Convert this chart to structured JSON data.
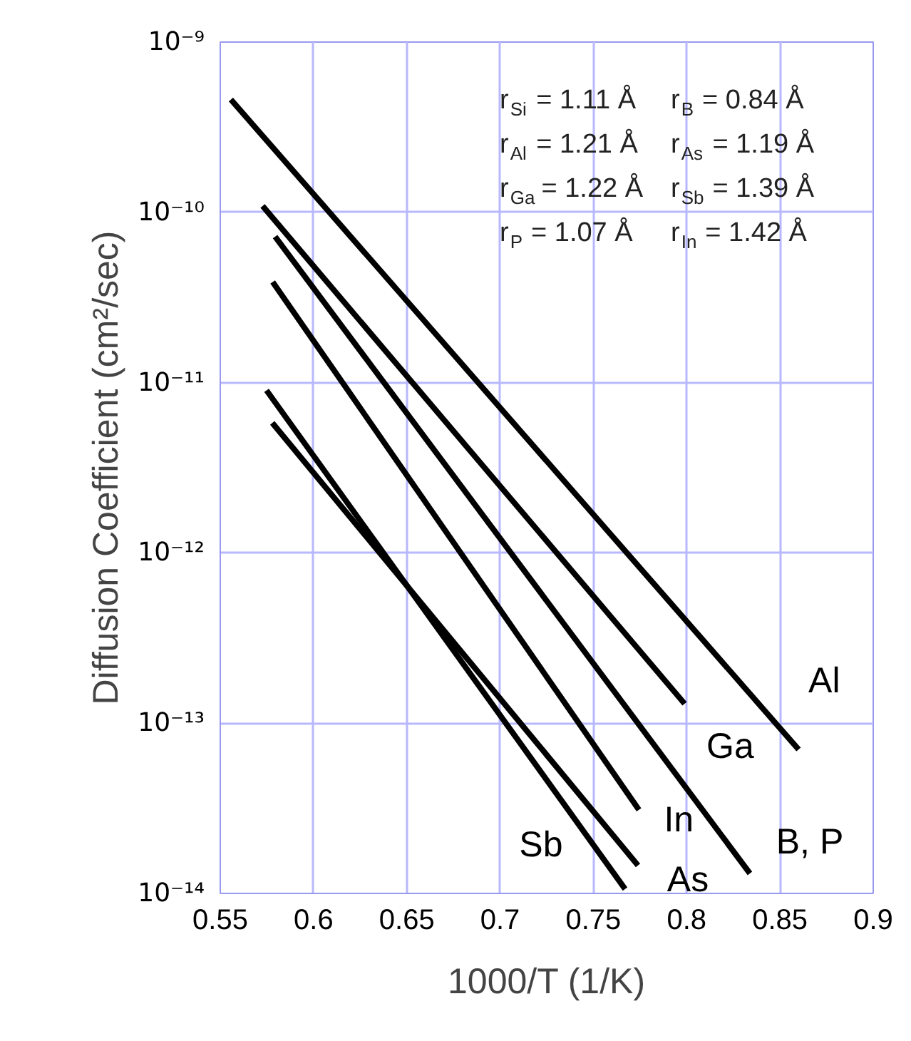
{
  "chart_data": {
    "type": "line",
    "xlabel": "1000/T (1/K)",
    "ylabel": "Diffusion Coefficient (cm²/sec)",
    "xlim": [
      0.55,
      0.9
    ],
    "xticks": [
      0.55,
      0.6,
      0.65,
      0.7,
      0.75,
      0.8,
      0.85,
      0.9
    ],
    "ylim": [
      1e-14,
      1e-09
    ],
    "yticks": [
      {
        "value": 1e-14,
        "label": "10⁻¹⁴"
      },
      {
        "value": 1e-13,
        "label": "10⁻¹³"
      },
      {
        "value": 1e-12,
        "label": "10⁻¹²"
      },
      {
        "value": 1e-11,
        "label": "10⁻¹¹"
      },
      {
        "value": 1e-10,
        "label": "10⁻¹⁰"
      },
      {
        "value": 1e-09,
        "label": "10⁻⁹"
      }
    ],
    "log": true,
    "grid": true,
    "marker": "none",
    "line_style": "solid",
    "series": [
      {
        "name": "Al",
        "color": "#000000",
        "x": [
          0.5557,
          0.86
        ],
        "values": [
          4.6e-10,
          7e-14
        ]
      },
      {
        "name": "Ga",
        "color": "#000000",
        "x": [
          0.5727,
          0.7989
        ],
        "values": [
          1.09e-10,
          1.3e-13
        ]
      },
      {
        "name": "B, P",
        "color": "#000000",
        "x": [
          0.5794,
          0.8339
        ],
        "values": [
          7.2e-11,
          1.31e-14
        ]
      },
      {
        "name": "In",
        "color": "#000000",
        "x": [
          0.5781,
          0.7744
        ],
        "values": [
          3.9e-11,
          3.1e-14
        ]
      },
      {
        "name": "Sb",
        "color": "#000000",
        "x": [
          0.5748,
          0.767
        ],
        "values": [
          9e-12,
          1.06e-14
        ]
      },
      {
        "name": "As",
        "color": "#000000",
        "x": [
          0.5779,
          0.7739
        ],
        "values": [
          5.8e-12,
          1.46e-14
        ]
      }
    ],
    "annotations": [
      "r$_{Si}$ = 1.11 Å",
      "r$_{Al}$ = 1.21 Å",
      "r$_{Ga}$ = 1.22 Å",
      "r$_{P}$ = 1.07 Å",
      "r$_{B}$ = 0.84 Å",
      "r$_{As}$ = 1.19 Å",
      "r$_{Sb}$ = 1.39 Å",
      "r$_{In}$ = 1.42 Å"
    ]
  }
}
